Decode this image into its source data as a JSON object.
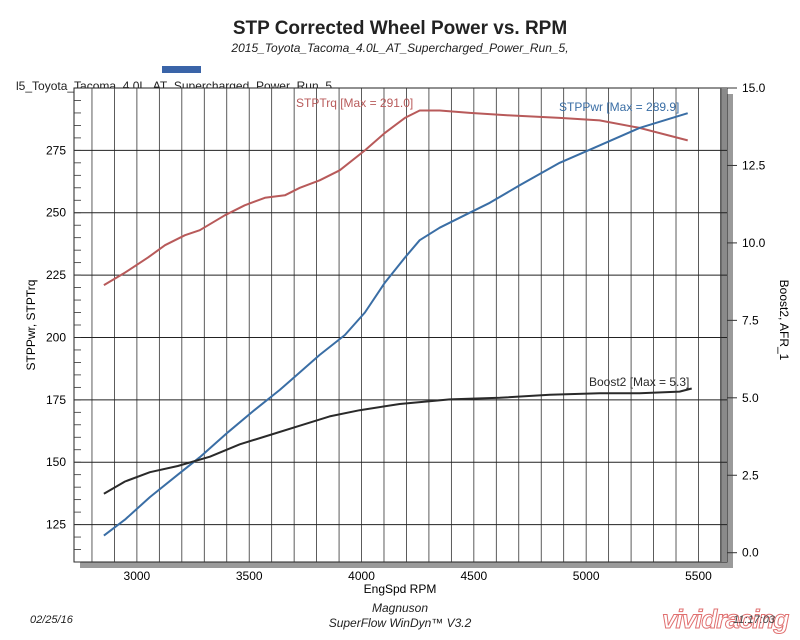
{
  "chart_data": {
    "type": "line",
    "title": "STP Corrected Wheel Power vs. RPM",
    "subtitle": "2015_Toyota_Tacoma_4.0L_AT_Supercharged_Power_Run_5,",
    "run_label": "l5_Toyota_Tacoma_4.0L_AT_Supercharged_Power_Run_5",
    "xlabel": "EngSpd RPM",
    "ylabel_left": "STPPwr, STPTrq",
    "ylabel_right": "Boost2, AFR_1",
    "xlim": [
      2720,
      5627
    ],
    "ylim_left": [
      110,
      300
    ],
    "ylim_right": [
      -0.3,
      15.0
    ],
    "x_ticks": [
      3000,
      3500,
      4000,
      4500,
      5000,
      5500
    ],
    "x_tick_labels": [
      "3000",
      "3500",
      "4000",
      "4500",
      "5000",
      "5500"
    ],
    "y_left_ticks": [
      125,
      150,
      175,
      200,
      225,
      250,
      275
    ],
    "y_left_tick_labels": [
      "125",
      "150",
      "175",
      "200",
      "225",
      "250",
      "275"
    ],
    "y_right_ticks": [
      0,
      2.5,
      5,
      7.5,
      10,
      12.5,
      15
    ],
    "y_right_tick_labels": [
      "0.0",
      "2.5",
      "5.0",
      "7.5",
      "10.0",
      "12.5",
      "15.0"
    ],
    "grid": true,
    "series": [
      {
        "name": "STPTrq",
        "label": "STPTrq [Max  = 291.0]",
        "axis": "left",
        "color": "#b85a5a",
        "x": [
          2853,
          2947,
          3049,
          3125,
          3214,
          3280,
          3392,
          3480,
          3570,
          3659,
          3725,
          3814,
          3903,
          4015,
          4104,
          4193,
          4259,
          4348,
          4482,
          4660,
          4882,
          5060,
          5238,
          5452
        ],
        "y": [
          221,
          226,
          232,
          237,
          241,
          243,
          249,
          253,
          256,
          257,
          260,
          263,
          267,
          275,
          282,
          288,
          291,
          291,
          290,
          289,
          288,
          287,
          284,
          279
        ]
      },
      {
        "name": "STPPwr",
        "label": "STPPwr [Max = 289.9]",
        "axis": "left",
        "color": "#3a6ea5",
        "x": [
          2853,
          2947,
          3058,
          3182,
          3280,
          3405,
          3525,
          3636,
          3725,
          3814,
          3926,
          4015,
          4104,
          4193,
          4259,
          4348,
          4482,
          4571,
          4704,
          4882,
          5060,
          5238,
          5452
        ],
        "y": [
          120.6,
          127,
          136,
          145,
          152,
          162,
          171,
          179,
          186,
          193,
          201,
          210,
          222,
          232,
          239,
          244,
          250,
          254,
          261,
          270,
          277,
          284,
          289.9
        ]
      },
      {
        "name": "Boost2",
        "label": "Boost2 [Max = 5.3]",
        "axis": "right",
        "color": "#2a2a2a",
        "x": [
          2853,
          2947,
          3058,
          3182,
          3325,
          3458,
          3592,
          3725,
          3858,
          3992,
          4170,
          4393,
          4615,
          4838,
          5060,
          5238,
          5416,
          5470
        ],
        "y": [
          1.9,
          2.3,
          2.6,
          2.8,
          3.1,
          3.5,
          3.8,
          4.1,
          4.4,
          4.6,
          4.8,
          4.95,
          5.0,
          5.1,
          5.15,
          5.15,
          5.2,
          5.3
        ]
      }
    ]
  },
  "footer": {
    "date": "02/25/16",
    "company": "Magnuson",
    "software": "SuperFlow WinDyn™ V3.2",
    "time": "11:17:03"
  },
  "watermark": "vividracing",
  "colors": {
    "legend_swatch": "#3a64a8",
    "shadow": "#9a9a9a"
  }
}
